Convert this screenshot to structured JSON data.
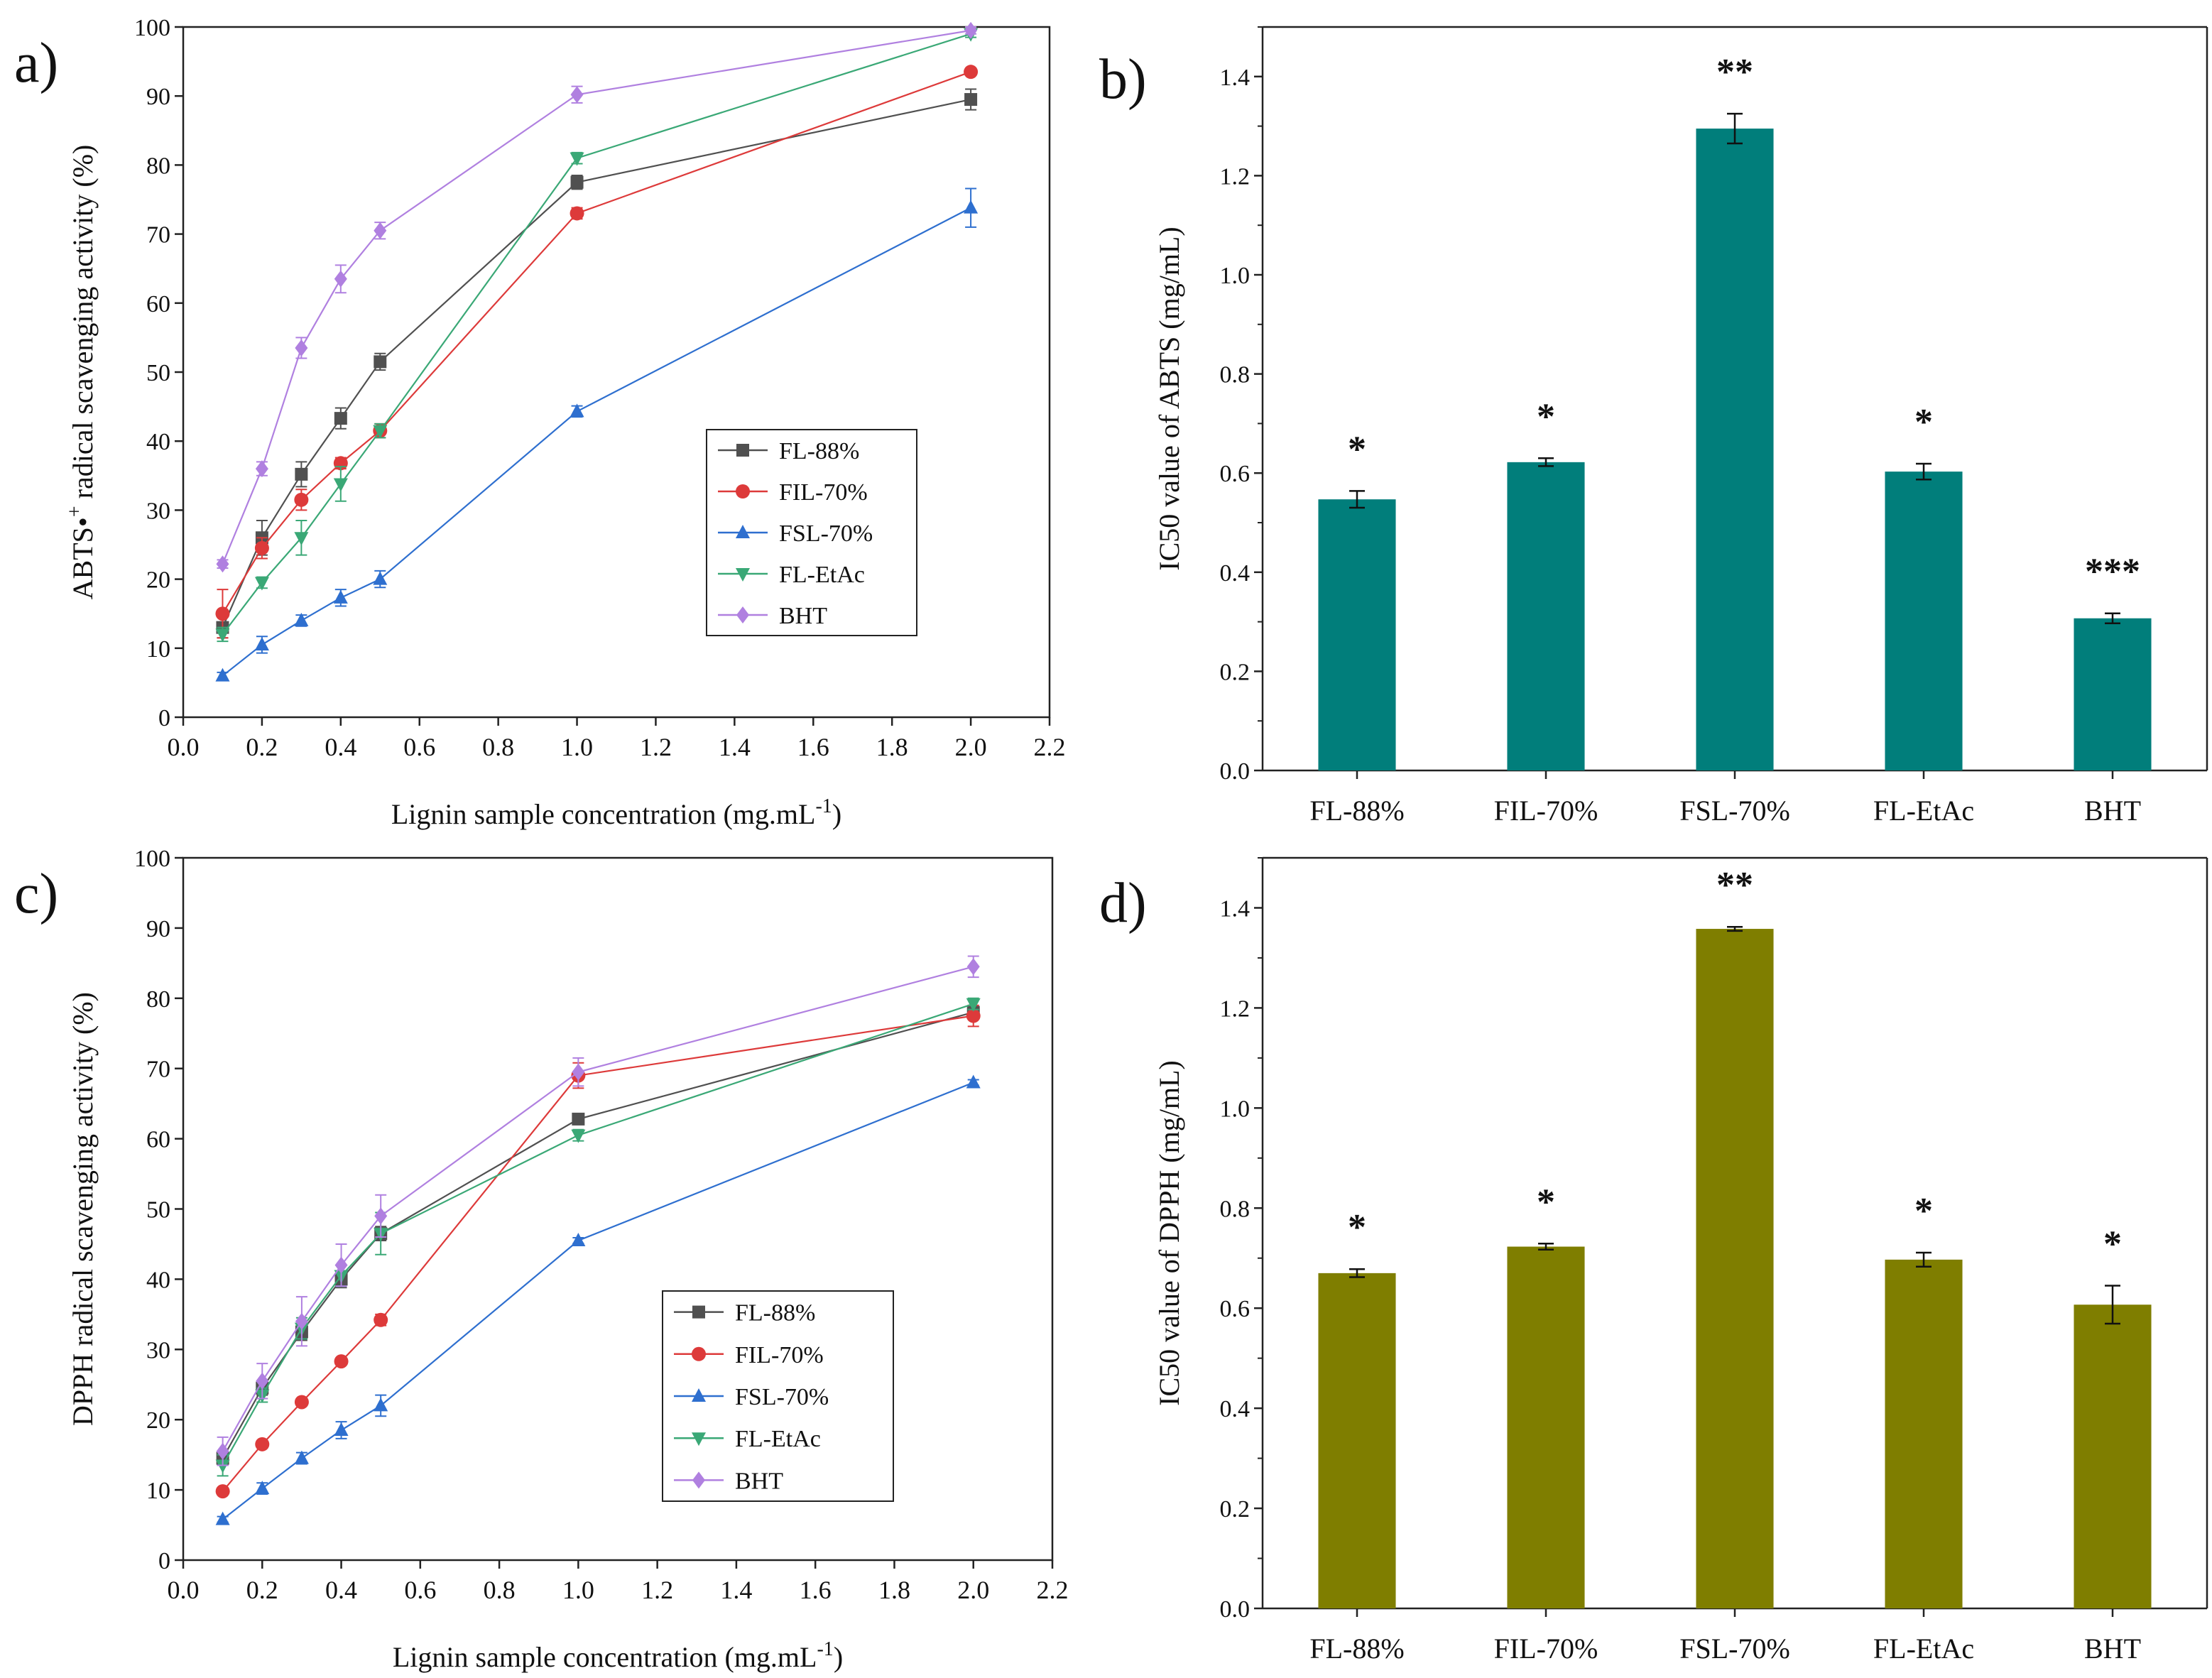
{
  "chart_data": [
    {
      "panel": "a)",
      "type": "line",
      "xlabel": "Lignin sample concentration (mg.mL",
      "xlabel_sup": "-1",
      "xlabel_close": ")",
      "ylabel": "ABTS•",
      "ylabel_sup": "+",
      "ylabel_rest": " radical scavenging activity (%)",
      "xlim": [
        0.0,
        2.2
      ],
      "ylim": [
        0,
        100
      ],
      "xticks": [
        "0.0",
        "0.2",
        "0.4",
        "0.6",
        "0.8",
        "1.0",
        "1.2",
        "1.4",
        "1.6",
        "1.8",
        "2.0",
        "2.2"
      ],
      "yticks": [
        "0",
        "10",
        "20",
        "30",
        "40",
        "50",
        "60",
        "70",
        "80",
        "90",
        "100"
      ],
      "x": [
        0.1,
        0.2,
        0.3,
        0.4,
        0.5,
        1.0,
        2.0
      ],
      "legend_position": "center-right",
      "series": [
        {
          "name": "FL-88%",
          "color": "#505050",
          "marker": "square",
          "values": [
            13.0,
            26.0,
            35.2,
            43.3,
            51.5,
            77.5,
            89.5
          ],
          "errors": [
            1.5,
            2.5,
            1.8,
            1.5,
            1.2,
            1.0,
            1.5
          ]
        },
        {
          "name": "FIL-70%",
          "color": "#dd3a3a",
          "marker": "circle",
          "values": [
            15.0,
            24.5,
            31.5,
            36.8,
            41.5,
            73.0,
            93.5
          ],
          "errors": [
            3.5,
            1.5,
            1.5,
            0.8,
            1.0,
            0.8,
            0.5
          ]
        },
        {
          "name": "FSL-70%",
          "color": "#2e6fcf",
          "marker": "triangle-up",
          "values": [
            6.0,
            10.5,
            14.0,
            17.3,
            20.0,
            44.3,
            73.8
          ],
          "errors": [
            0.5,
            1.2,
            0.8,
            1.2,
            1.2,
            0.8,
            2.8
          ]
        },
        {
          "name": "FL-EtAc",
          "color": "#3aa876",
          "marker": "triangle-down",
          "values": [
            12.0,
            19.5,
            26.0,
            33.8,
            41.5,
            81.0,
            99.0
          ],
          "errors": [
            1.0,
            0.8,
            2.5,
            2.5,
            1.0,
            0.8,
            0.5
          ]
        },
        {
          "name": "BHT",
          "color": "#b080e0",
          "marker": "diamond",
          "values": [
            22.2,
            36.0,
            53.5,
            63.5,
            70.5,
            90.2,
            99.5
          ],
          "errors": [
            0.6,
            1.0,
            1.5,
            2.0,
            1.2,
            1.2,
            0.5
          ]
        }
      ]
    },
    {
      "panel": "b)",
      "type": "bar",
      "ylabel": "IC50 value of ABTS (mg/mL)",
      "xlabel": "",
      "ylim": [
        0.0,
        1.5
      ],
      "yticks": [
        "0.0",
        "0.2",
        "0.4",
        "0.6",
        "0.8",
        "1.0",
        "1.2",
        "1.4"
      ],
      "categories": [
        "FL-88%",
        "FIL-70%",
        "FSL-70%",
        "FL-EtAc",
        "BHT"
      ],
      "values": [
        0.547,
        0.622,
        1.295,
        0.603,
        0.307
      ],
      "errors": [
        0.017,
        0.008,
        0.03,
        0.016,
        0.01
      ],
      "annotations": [
        "*",
        "*",
        "**",
        "*",
        "***"
      ],
      "color": "#017e7b"
    },
    {
      "panel": "c)",
      "type": "line",
      "xlabel": "Lignin sample concentration (mg.mL",
      "xlabel_sup": "-1",
      "xlabel_close": ")",
      "ylabel": "DPPH radical scavenging activity (%)",
      "xlim": [
        0.0,
        2.2
      ],
      "ylim": [
        0,
        100
      ],
      "xticks": [
        "0.0",
        "0.2",
        "0.4",
        "0.6",
        "0.8",
        "1.0",
        "1.2",
        "1.4",
        "1.6",
        "1.8",
        "2.0",
        "2.2"
      ],
      "yticks": [
        "0",
        "10",
        "20",
        "30",
        "40",
        "50",
        "60",
        "70",
        "80",
        "90",
        "100"
      ],
      "x": [
        0.1,
        0.2,
        0.3,
        0.4,
        0.5,
        1.0,
        2.0
      ],
      "legend_position": "center",
      "series": [
        {
          "name": "FL-88%",
          "color": "#505050",
          "marker": "square",
          "values": [
            14.5,
            24.5,
            32.5,
            40.0,
            46.5,
            62.8,
            78.0
          ],
          "errors": [
            1.0,
            1.0,
            1.2,
            1.2,
            1.0,
            0.4,
            0.8
          ]
        },
        {
          "name": "FIL-70%",
          "color": "#dd3a3a",
          "marker": "circle",
          "values": [
            9.8,
            16.5,
            22.5,
            28.3,
            34.2,
            69.0,
            77.5
          ],
          "errors": [
            0.4,
            0.5,
            0.4,
            0.4,
            0.8,
            1.8,
            1.5
          ]
        },
        {
          "name": "FSL-70%",
          "color": "#2e6fcf",
          "marker": "triangle-up",
          "values": [
            5.8,
            10.2,
            14.5,
            18.5,
            22.0,
            45.5,
            68.0
          ],
          "errors": [
            0.4,
            0.8,
            0.8,
            1.2,
            1.5,
            0.4,
            0.4
          ]
        },
        {
          "name": "FL-EtAc",
          "color": "#3aa876",
          "marker": "triangle-down",
          "values": [
            13.5,
            23.5,
            33.0,
            40.5,
            46.5,
            60.5,
            79.2
          ],
          "errors": [
            1.5,
            1.0,
            1.5,
            1.5,
            3.0,
            0.8,
            0.8
          ]
        },
        {
          "name": "BHT",
          "color": "#b080e0",
          "marker": "diamond",
          "values": [
            15.5,
            25.5,
            34.0,
            42.0,
            49.0,
            69.5,
            84.5
          ],
          "errors": [
            2.0,
            2.5,
            3.5,
            3.0,
            3.0,
            2.0,
            1.5
          ]
        }
      ]
    },
    {
      "panel": "d)",
      "type": "bar",
      "ylabel": "IC50 value of DPPH (mg/mL)",
      "xlabel": "",
      "ylim": [
        0.0,
        1.5
      ],
      "yticks": [
        "0.0",
        "0.2",
        "0.4",
        "0.6",
        "0.8",
        "1.0",
        "1.2",
        "1.4"
      ],
      "categories": [
        "FL-88%",
        "FIL-70%",
        "FSL-70%",
        "FL-EtAc",
        "BHT"
      ],
      "values": [
        0.67,
        0.723,
        1.358,
        0.697,
        0.607
      ],
      "errors": [
        0.008,
        0.006,
        0.004,
        0.014,
        0.038
      ],
      "annotations": [
        "*",
        "*",
        "**",
        "*",
        "*"
      ],
      "color": "#7f7e00"
    }
  ]
}
